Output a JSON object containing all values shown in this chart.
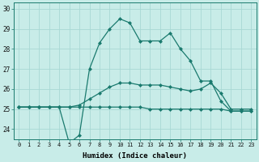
{
  "xlabel": "Humidex (Indice chaleur)",
  "x_values": [
    0,
    1,
    2,
    3,
    4,
    5,
    6,
    7,
    8,
    9,
    10,
    11,
    12,
    13,
    14,
    15,
    16,
    17,
    18,
    19,
    20,
    21,
    22,
    23
  ],
  "line1": [
    25.1,
    25.1,
    25.1,
    25.1,
    25.1,
    23.3,
    23.7,
    27.0,
    28.3,
    29.0,
    29.5,
    29.3,
    28.4,
    28.4,
    28.4,
    28.8,
    28.0,
    27.4,
    26.4,
    26.4,
    25.4,
    24.9,
    24.9,
    24.9
  ],
  "line2": [
    25.1,
    25.1,
    25.1,
    25.1,
    25.1,
    25.1,
    25.2,
    25.5,
    25.8,
    26.1,
    26.3,
    26.3,
    26.2,
    26.2,
    26.2,
    26.1,
    26.0,
    25.9,
    26.0,
    26.3,
    25.8,
    25.0,
    25.0,
    25.0
  ],
  "line3": [
    25.1,
    25.1,
    25.1,
    25.1,
    25.1,
    25.1,
    25.1,
    25.1,
    25.1,
    25.1,
    25.1,
    25.1,
    25.1,
    25.0,
    25.0,
    25.0,
    25.0,
    25.0,
    25.0,
    25.0,
    25.0,
    24.9,
    24.9,
    24.9
  ],
  "line_color": "#1a7a6e",
  "bg_color": "#c8ece8",
  "grid_color": "#a8d8d4",
  "ylim": [
    23.5,
    30.3
  ],
  "yticks": [
    24,
    25,
    26,
    27,
    28,
    29,
    30
  ],
  "xlim": [
    -0.5,
    23.5
  ]
}
